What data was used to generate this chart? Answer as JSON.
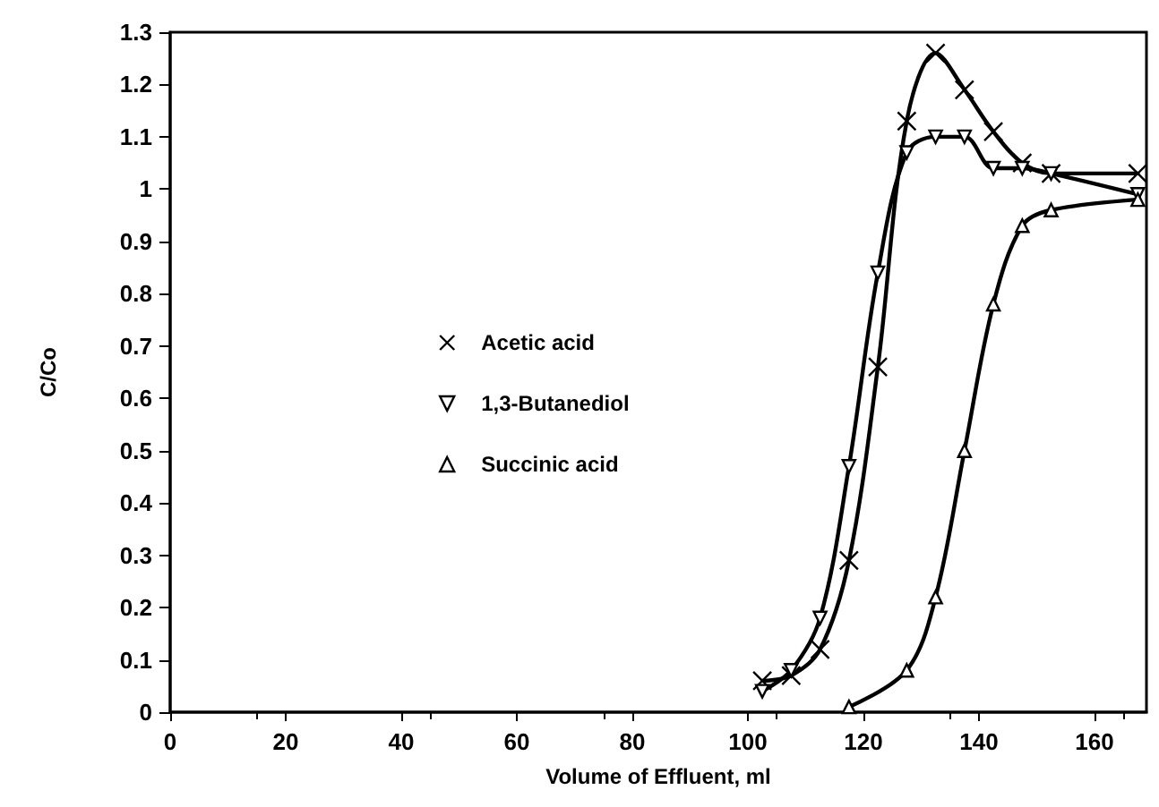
{
  "chart_data": {
    "type": "line",
    "xlabel": "Volume of Effluent, ml",
    "ylabel": "C/Co",
    "xlim": [
      0,
      169
    ],
    "xticks": [
      0,
      20,
      40,
      60,
      80,
      100,
      120,
      140,
      160
    ],
    "ylim": [
      0,
      1.3
    ],
    "yticks": [
      0,
      0.1,
      0.2,
      0.3,
      0.4,
      0.5,
      0.6,
      0.7,
      0.8,
      0.9,
      1,
      1.1,
      1.2,
      1.3
    ],
    "grid": false,
    "legend": "left",
    "line_style": "solid",
    "series": [
      {
        "name": "Acetic acid",
        "color": "#000000",
        "marker": "cross",
        "x": [
          102.5,
          107.5,
          112.5,
          117.5,
          122.5,
          127.5,
          132.5,
          137.5,
          142.5,
          147.5,
          152.5,
          167.5
        ],
        "values": [
          0.06,
          0.07,
          0.12,
          0.29,
          0.66,
          1.13,
          1.26,
          1.19,
          1.11,
          1.05,
          1.03,
          1.03
        ]
      },
      {
        "name": "1,3-Butanediol",
        "color": "#000000",
        "marker": "triangle-down",
        "x": [
          102.5,
          107.5,
          112.5,
          117.5,
          122.5,
          127.5,
          132.5,
          137.5,
          142.5,
          147.5,
          152.5,
          167.5
        ],
        "values": [
          0.04,
          0.08,
          0.18,
          0.47,
          0.84,
          1.07,
          1.1,
          1.1,
          1.04,
          1.04,
          1.03,
          0.99
        ]
      },
      {
        "name": "Succinic acid",
        "color": "#000000",
        "marker": "triangle",
        "x": [
          117.5,
          127.5,
          132.5,
          137.5,
          142.5,
          147.5,
          152.5,
          167.5
        ],
        "values": [
          0.01,
          0.08,
          0.22,
          0.5,
          0.78,
          0.93,
          0.96,
          0.98
        ]
      }
    ]
  }
}
